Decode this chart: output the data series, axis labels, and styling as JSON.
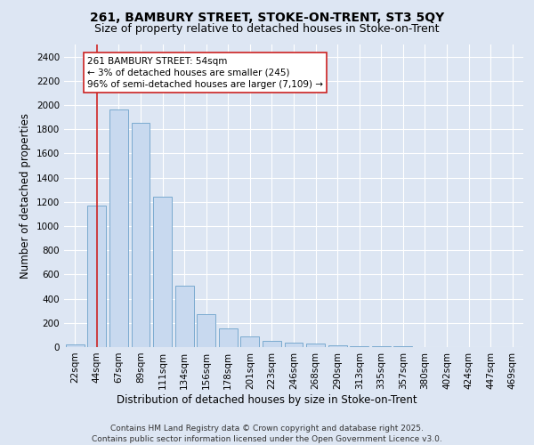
{
  "title_line1": "261, BAMBURY STREET, STOKE-ON-TRENT, ST3 5QY",
  "title_line2": "Size of property relative to detached houses in Stoke-on-Trent",
  "xlabel": "Distribution of detached houses by size in Stoke-on-Trent",
  "ylabel": "Number of detached properties",
  "categories": [
    "22sqm",
    "44sqm",
    "67sqm",
    "89sqm",
    "111sqm",
    "134sqm",
    "156sqm",
    "178sqm",
    "201sqm",
    "223sqm",
    "246sqm",
    "268sqm",
    "290sqm",
    "313sqm",
    "335sqm",
    "357sqm",
    "380sqm",
    "402sqm",
    "424sqm",
    "447sqm",
    "469sqm"
  ],
  "values": [
    20,
    1170,
    1960,
    1850,
    1245,
    510,
    275,
    155,
    90,
    50,
    35,
    30,
    15,
    8,
    5,
    4,
    3,
    2,
    2,
    1,
    1
  ],
  "bar_color": "#c8d9ef",
  "bar_edge_color": "#7aaad0",
  "vline_x_index": 1,
  "vline_color": "#cc2222",
  "annotation_text": "261 BAMBURY STREET: 54sqm\n← 3% of detached houses are smaller (245)\n96% of semi-detached houses are larger (7,109) →",
  "annotation_box_color": "#ffffff",
  "annotation_box_edge_color": "#cc2222",
  "ylim": [
    0,
    2500
  ],
  "yticks": [
    0,
    200,
    400,
    600,
    800,
    1000,
    1200,
    1400,
    1600,
    1800,
    2000,
    2200,
    2400
  ],
  "background_color": "#dde6f3",
  "grid_color": "#ffffff",
  "footer_line1": "Contains HM Land Registry data © Crown copyright and database right 2025.",
  "footer_line2": "Contains public sector information licensed under the Open Government Licence v3.0.",
  "title_fontsize": 10,
  "subtitle_fontsize": 9,
  "axis_label_fontsize": 8.5,
  "tick_fontsize": 7.5,
  "annotation_fontsize": 7.5,
  "footer_fontsize": 6.5
}
